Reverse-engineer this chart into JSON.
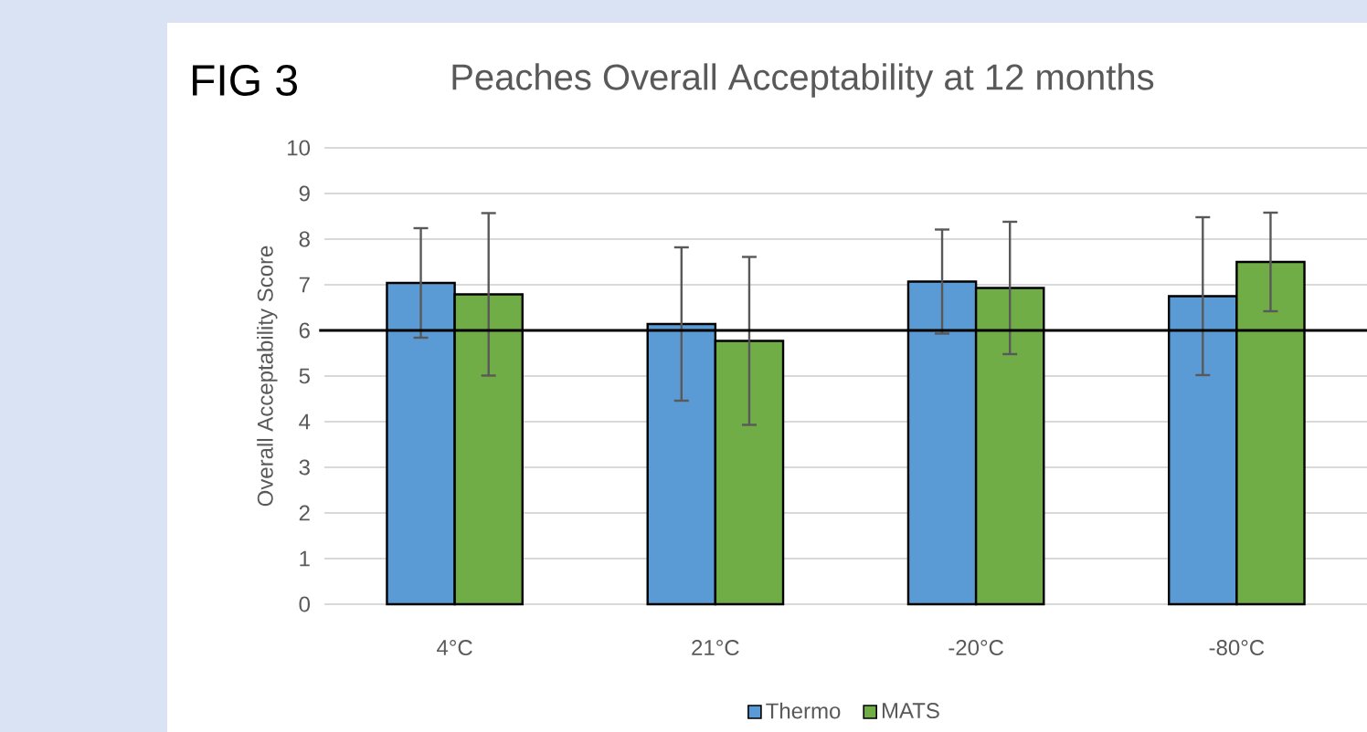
{
  "chart_data": {
    "type": "bar",
    "title": "Peaches Overall Acceptability at 12 months",
    "ylabel": "Overall Acceptability Score",
    "annotations": [
      "FIG 3"
    ],
    "categories": [
      "4°C",
      "21°C",
      "-20°C",
      "-80°C"
    ],
    "series": [
      {
        "name": "Thermo",
        "color": "#5b9bd5",
        "values": [
          7.04,
          6.14,
          7.07,
          6.75
        ],
        "errors": [
          1.2,
          1.68,
          1.14,
          1.73
        ]
      },
      {
        "name": "MATS",
        "color": "#70ad47",
        "values": [
          6.79,
          5.77,
          6.93,
          7.5
        ],
        "errors": [
          1.78,
          1.84,
          1.45,
          1.08
        ]
      }
    ],
    "ylim": [
      0,
      10
    ],
    "yticks": [
      0,
      1,
      2,
      3,
      4,
      5,
      6,
      7,
      8,
      9,
      10
    ],
    "grid": "y",
    "legend": "bottom",
    "ref_lines": [
      {
        "axis": "y",
        "value": 6,
        "color": "#000000"
      }
    ]
  }
}
